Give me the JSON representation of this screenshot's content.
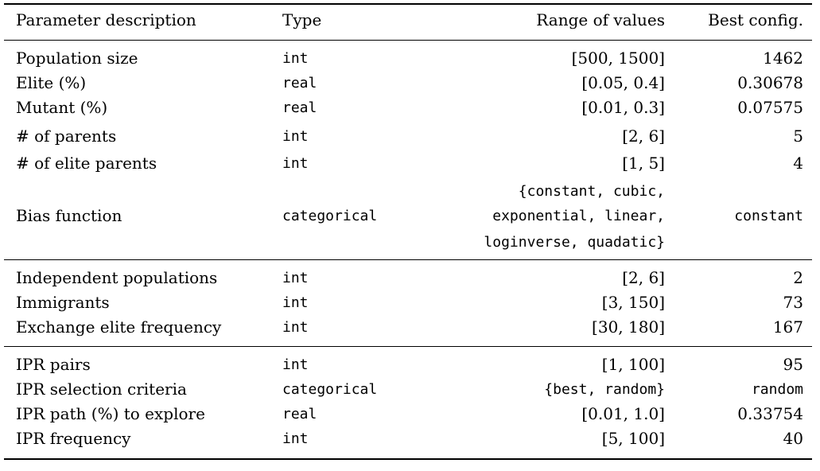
{
  "table": {
    "columns": {
      "description": "Parameter description",
      "type": "Type",
      "range": "Range of values",
      "best": "Best config."
    },
    "groups": [
      {
        "rows": [
          {
            "description": "Population size",
            "type": "int",
            "range": "[500, 1500]",
            "best": "1462"
          },
          {
            "description": "Elite (%)",
            "type": "real",
            "range": "[0.05, 0.4]",
            "best": "0.30678"
          },
          {
            "description": "Mutant (%)",
            "type": "real",
            "range": "[0.01, 0.3]",
            "best": "0.07575"
          },
          {
            "description": "# of parents",
            "type": "int",
            "range": "[2, 6]",
            "best": "5"
          },
          {
            "description": "# of elite parents",
            "type": "int",
            "range": "[1, 5]",
            "best": "4"
          },
          {
            "description": "Bias function",
            "type": "categorical",
            "range_lines": [
              "{constant, cubic,",
              "exponential, linear,",
              "loginverse, quadatic}"
            ],
            "best": "constant",
            "best_mono": true
          }
        ]
      },
      {
        "rows": [
          {
            "description": "Independent populations",
            "type": "int",
            "range": "[2, 6]",
            "best": "2"
          },
          {
            "description": "Immigrants",
            "type": "int",
            "range": "[3, 150]",
            "best": "73"
          },
          {
            "description": "Exchange elite frequency",
            "type": "int",
            "range": "[30, 180]",
            "best": "167"
          }
        ]
      },
      {
        "rows": [
          {
            "description": "IPR pairs",
            "type": "int",
            "range": "[1, 100]",
            "best": "95"
          },
          {
            "description": "IPR selection criteria",
            "type": "categorical",
            "range": "{best, random}",
            "range_mono": true,
            "best": "random",
            "best_mono": true
          },
          {
            "description": "IPR path (%) to explore",
            "type": "real",
            "range": "[0.01, 1.0]",
            "best": "0.33754"
          },
          {
            "description": "IPR frequency",
            "type": "int",
            "range": "[5, 100]",
            "best": "40"
          }
        ]
      }
    ]
  }
}
